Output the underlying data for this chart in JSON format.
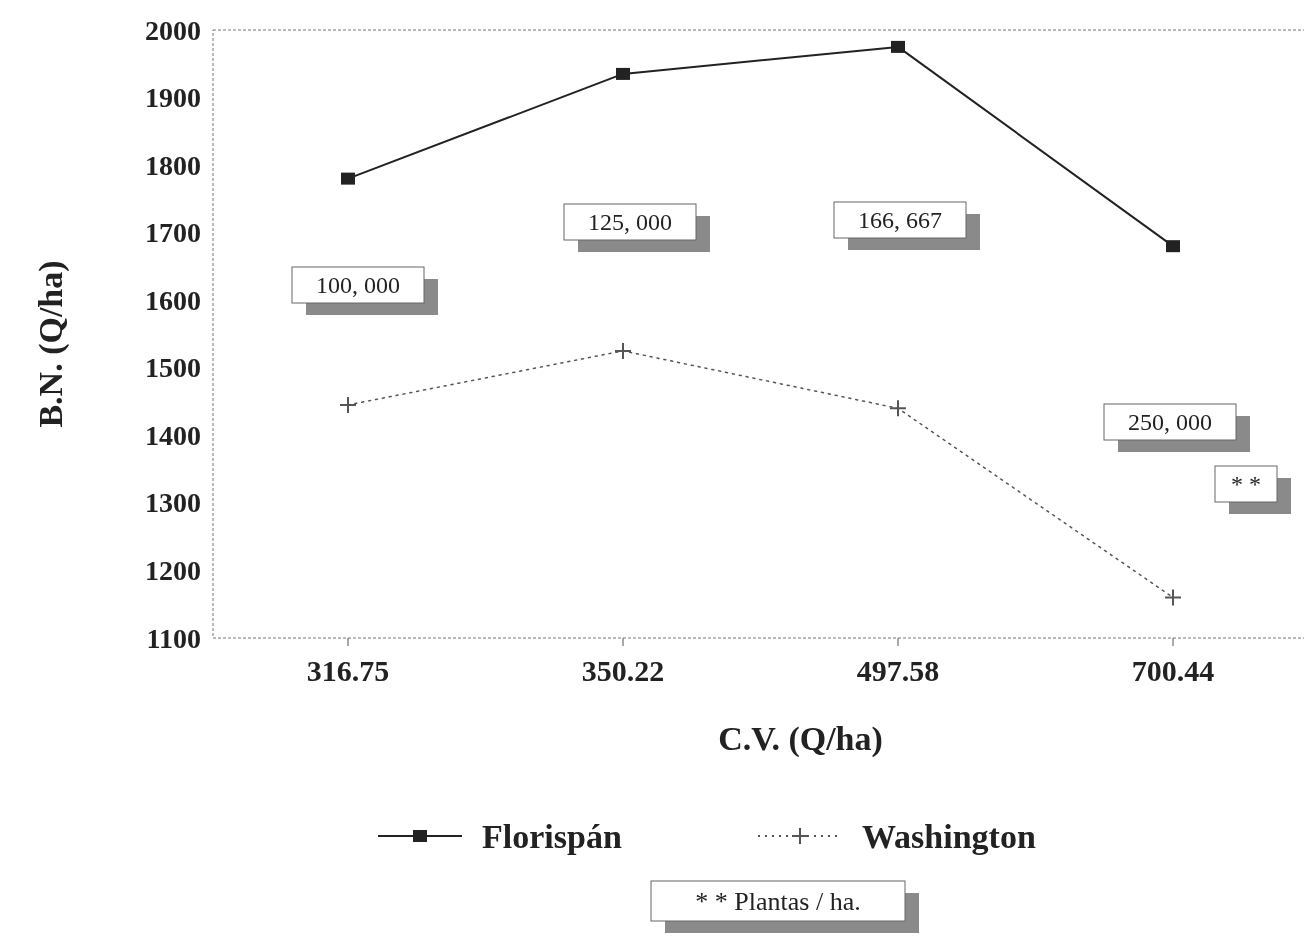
{
  "chart_data": {
    "type": "line",
    "xlabel": "C.V.  (Q/ha)",
    "ylabel": "B.N.  (Q/ha)",
    "categories": [
      "316.75",
      "350.22",
      "497.58",
      "700.44"
    ],
    "series": [
      {
        "name": "Florispán",
        "color": "#222222",
        "values": [
          1780,
          1935,
          1975,
          1680
        ],
        "marker": "square",
        "line_style": "solid"
      },
      {
        "name": "Washington",
        "color": "#555555",
        "values": [
          1445,
          1525,
          1440,
          1160
        ],
        "marker": "cross",
        "line_style": "dotted"
      }
    ],
    "ylim": [
      1100,
      2000
    ],
    "yticks": [
      1100,
      1200,
      1300,
      1400,
      1500,
      1600,
      1700,
      1800,
      1900,
      2000
    ],
    "legend": "bottom",
    "grid": false,
    "annotations": [
      "100, 000",
      "125, 000",
      "166, 667",
      "250, 000",
      "* *",
      "* *  Plantas / ha."
    ]
  }
}
